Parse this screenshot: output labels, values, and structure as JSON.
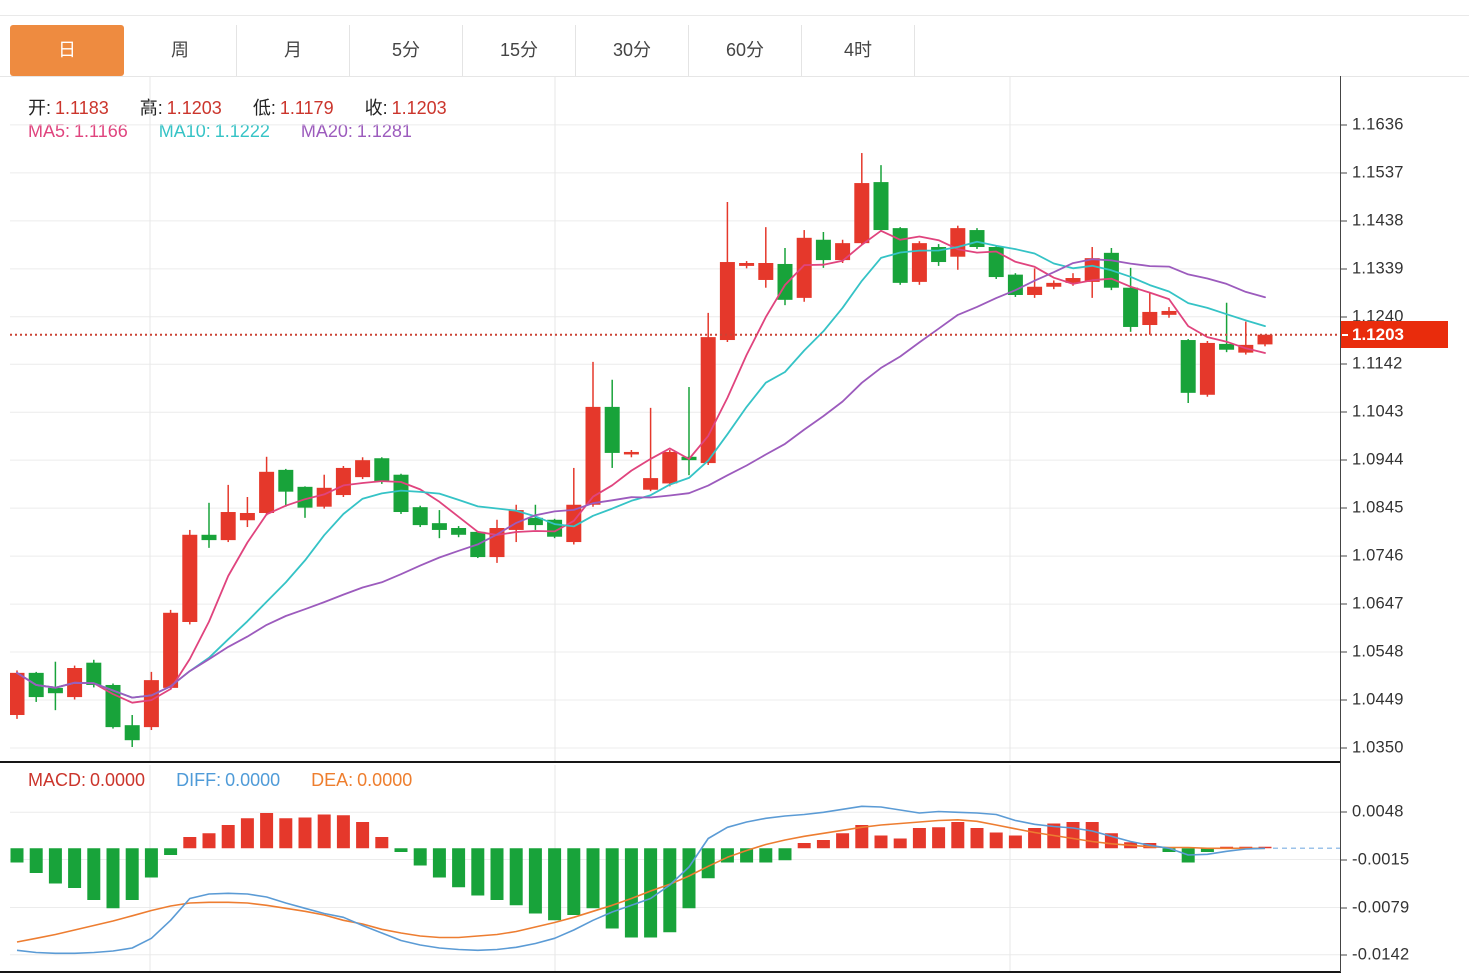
{
  "tabs": {
    "items": [
      {
        "label": "日",
        "active": true
      },
      {
        "label": "周",
        "active": false
      },
      {
        "label": "月",
        "active": false
      },
      {
        "label": "5分",
        "active": false
      },
      {
        "label": "15分",
        "active": false
      },
      {
        "label": "30分",
        "active": false
      },
      {
        "label": "60分",
        "active": false
      },
      {
        "label": "4时",
        "active": false
      }
    ]
  },
  "legend": {
    "ohlc": [
      {
        "label": "开:",
        "value": "1.1183"
      },
      {
        "label": "高:",
        "value": "1.1203"
      },
      {
        "label": "低:",
        "value": "1.1179"
      },
      {
        "label": "收:",
        "value": "1.1203"
      }
    ],
    "ma": [
      {
        "label": "MA5:",
        "value": "1.1166"
      },
      {
        "label": "MA10:",
        "value": "1.1222"
      },
      {
        "label": "MA20:",
        "value": "1.1281"
      }
    ],
    "macd": [
      {
        "label": "MACD:",
        "value": "0.0000"
      },
      {
        "label": "DIFF:",
        "value": "0.0000"
      },
      {
        "label": "DEA:",
        "value": "0.0000"
      }
    ]
  },
  "price_axis": {
    "ticks": [
      {
        "label": "1.1636",
        "price": 1.1636
      },
      {
        "label": "1.1537",
        "price": 1.1537
      },
      {
        "label": "1.1438",
        "price": 1.1438
      },
      {
        "label": "1.1339",
        "price": 1.1339
      },
      {
        "label": "1.1240",
        "price": 1.124
      },
      {
        "label": "1.1142",
        "price": 1.1142
      },
      {
        "label": "1.1043",
        "price": 1.1043
      },
      {
        "label": "1.0944",
        "price": 1.0944
      },
      {
        "label": "1.0845",
        "price": 1.0845
      },
      {
        "label": "1.0746",
        "price": 1.0746
      },
      {
        "label": "1.0647",
        "price": 1.0647
      },
      {
        "label": "1.0548",
        "price": 1.0548
      },
      {
        "label": "1.0449",
        "price": 1.0449
      },
      {
        "label": "1.0350",
        "price": 1.035
      }
    ],
    "current": {
      "label": "1.1203",
      "price": 1.1203
    }
  },
  "macd_axis": {
    "ticks": [
      {
        "label": "0.0048",
        "value": 0.0048
      },
      {
        "label": "-0.0015",
        "value": -0.0015
      },
      {
        "label": "-0.0079",
        "value": -0.0079
      },
      {
        "label": "-0.0142",
        "value": -0.0142
      }
    ]
  },
  "colors": {
    "up_candle": "#e5382b",
    "down_candle": "#18a33a",
    "ma5": "#e0447e",
    "ma10": "#35c3c6",
    "ma20": "#9c5bbd",
    "diff_line": "#5b9bd5",
    "dea_line": "#ed7d31",
    "current_price_bg": "#e92c0c",
    "current_price_line": "#cb4335",
    "active_tab": "#ee8b40",
    "grid": "#ececec"
  },
  "chart_data": {
    "type": "candlestick",
    "convention": "red = up (close>open), green = down — CN style",
    "x_axis": {
      "labels_visible": false,
      "bar_count": 66
    },
    "price_panel": {
      "ylim": [
        1.0321,
        1.1737
      ],
      "tick_values": [
        1.1636,
        1.1537,
        1.1438,
        1.1339,
        1.124,
        1.1142,
        1.1043,
        1.0944,
        1.0845,
        1.0746,
        1.0647,
        1.0548,
        1.0449,
        1.035
      ],
      "current_price": 1.1203,
      "moving_averages": [
        {
          "name": "MA5",
          "period": 5,
          "last": 1.1166
        },
        {
          "name": "MA10",
          "period": 10,
          "last": 1.1222
        },
        {
          "name": "MA20",
          "period": 20,
          "last": 1.1281
        }
      ],
      "candles_ohlc": [
        [
          1.0418,
          1.051,
          1.041,
          1.0505
        ],
        [
          1.0505,
          1.0507,
          1.0445,
          1.0455
        ],
        [
          1.0474,
          1.0528,
          1.0428,
          1.0463
        ],
        [
          1.0455,
          1.052,
          1.045,
          1.0515
        ],
        [
          1.0526,
          1.0532,
          1.0475,
          1.048
        ],
        [
          1.048,
          1.0483,
          1.039,
          1.0393
        ],
        [
          1.0397,
          1.0418,
          1.0352,
          1.0366
        ],
        [
          1.0393,
          1.0507,
          1.0387,
          1.049
        ],
        [
          1.0474,
          1.0635,
          1.047,
          1.0629
        ],
        [
          1.061,
          1.08,
          1.0605,
          1.079
        ],
        [
          1.079,
          1.0856,
          1.0763,
          1.0779
        ],
        [
          1.0779,
          1.0893,
          1.0775,
          1.0837
        ],
        [
          1.082,
          1.0868,
          1.0806,
          1.0835
        ],
        [
          1.0835,
          1.0951,
          1.083,
          1.092
        ],
        [
          1.0924,
          1.0926,
          1.0848,
          1.0879
        ],
        [
          1.0889,
          1.089,
          1.0825,
          1.0846
        ],
        [
          1.0848,
          1.0914,
          1.0844,
          1.0887
        ],
        [
          1.0872,
          1.0932,
          1.0868,
          1.0928
        ],
        [
          1.0909,
          1.095,
          1.0905,
          1.0944
        ],
        [
          1.0948,
          1.095,
          1.0895,
          1.0899
        ],
        [
          1.0914,
          1.0916,
          1.0833,
          1.0837
        ],
        [
          1.0847,
          1.085,
          1.0806,
          1.081
        ],
        [
          1.0814,
          1.0841,
          1.0783,
          1.08
        ],
        [
          1.0804,
          1.0808,
          1.0785,
          1.079
        ],
        [
          1.0796,
          1.0798,
          1.0742,
          1.0744
        ],
        [
          1.0744,
          1.0821,
          1.0732,
          1.0804
        ],
        [
          1.08,
          1.0852,
          1.0775,
          1.0841
        ],
        [
          1.0825,
          1.0852,
          1.08,
          1.081
        ],
        [
          1.0821,
          1.0823,
          1.0783,
          1.0786
        ],
        [
          1.0775,
          1.0928,
          1.077,
          1.0852
        ],
        [
          1.0852,
          1.1147,
          1.0848,
          1.1054
        ],
        [
          1.1054,
          1.111,
          1.0928,
          1.0959
        ],
        [
          1.0956,
          1.0965,
          1.095,
          1.0961
        ],
        [
          1.0883,
          1.1052,
          1.088,
          1.0907
        ],
        [
          1.0896,
          1.0965,
          1.089,
          1.0961
        ],
        [
          1.0951,
          1.1095,
          1.0913,
          1.0944
        ],
        [
          1.0938,
          1.1248,
          1.0934,
          1.1198
        ],
        [
          1.1192,
          1.1477,
          1.1188,
          1.1353
        ],
        [
          1.1345,
          1.1355,
          1.134,
          1.1351
        ],
        [
          1.1316,
          1.1425,
          1.13,
          1.1351
        ],
        [
          1.1349,
          1.1382,
          1.1264,
          1.1275
        ],
        [
          1.1279,
          1.1419,
          1.1271,
          1.1403
        ],
        [
          1.1399,
          1.1415,
          1.1341,
          1.1357
        ],
        [
          1.1357,
          1.1399,
          1.1351,
          1.1392
        ],
        [
          1.1392,
          1.1578,
          1.1388,
          1.1516
        ],
        [
          1.1518,
          1.1553,
          1.1415,
          1.1419
        ],
        [
          1.1423,
          1.1425,
          1.1306,
          1.131
        ],
        [
          1.1312,
          1.1396,
          1.1306,
          1.1392
        ],
        [
          1.1384,
          1.139,
          1.1345,
          1.1353
        ],
        [
          1.1364,
          1.1428,
          1.1337,
          1.1423
        ],
        [
          1.1419,
          1.1423,
          1.138,
          1.1384
        ],
        [
          1.1384,
          1.1388,
          1.1318,
          1.1322
        ],
        [
          1.1327,
          1.133,
          1.1281,
          1.1285
        ],
        [
          1.1285,
          1.134,
          1.1279,
          1.1302
        ],
        [
          1.1302,
          1.1315,
          1.1297,
          1.131
        ],
        [
          1.131,
          1.133,
          1.1304,
          1.132
        ],
        [
          1.1312,
          1.1384,
          1.1279,
          1.1361
        ],
        [
          1.1372,
          1.1382,
          1.1295,
          1.13
        ],
        [
          1.13,
          1.1341,
          1.1209,
          1.1219
        ],
        [
          1.1223,
          1.1289,
          1.1203,
          1.125
        ],
        [
          1.1244,
          1.126,
          1.1238,
          1.1252
        ],
        [
          1.1192,
          1.1194,
          1.1062,
          1.1083
        ],
        [
          1.1079,
          1.119,
          1.1075,
          1.1186
        ],
        [
          1.1184,
          1.1269,
          1.1167,
          1.1172
        ],
        [
          1.1166,
          1.123,
          1.1162,
          1.1182
        ],
        [
          1.1183,
          1.1203,
          1.1179,
          1.1203
        ]
      ]
    },
    "macd_panel": {
      "ylim": [
        -0.0165,
        0.0111
      ],
      "tick_values": [
        0.0048,
        -0.0015,
        -0.0079,
        -0.0142
      ],
      "legend_values": {
        "MACD": 0.0,
        "DIFF": 0.0,
        "DEA": 0.0
      },
      "hist": [
        -0.0019,
        -0.0033,
        -0.0047,
        -0.0053,
        -0.0069,
        -0.008,
        -0.0069,
        -0.0039,
        -0.0009,
        0.0015,
        0.002,
        0.0031,
        0.004,
        0.0047,
        0.004,
        0.0041,
        0.0045,
        0.0044,
        0.0035,
        0.0015,
        -0.0005,
        -0.0023,
        -0.0039,
        -0.0052,
        -0.0063,
        -0.0069,
        -0.0076,
        -0.0087,
        -0.0096,
        -0.0089,
        -0.008,
        -0.0107,
        -0.0119,
        -0.0119,
        -0.0112,
        -0.008,
        -0.004,
        -0.0019,
        -0.0019,
        -0.0019,
        -0.0016,
        0.0007,
        0.0011,
        0.002,
        0.0031,
        0.0017,
        0.0013,
        0.0027,
        0.0028,
        0.0035,
        0.0027,
        0.0021,
        0.0017,
        0.0027,
        0.0033,
        0.0035,
        0.0035,
        0.002,
        0.0008,
        0.0007,
        -0.0005,
        -0.0019,
        -0.0005,
        0.0002,
        0.0001,
        0.0
      ],
      "diff": [
        -0.0136,
        -0.0139,
        -0.014,
        -0.014,
        -0.0139,
        -0.0137,
        -0.0133,
        -0.012,
        -0.0096,
        -0.0067,
        -0.0061,
        -0.006,
        -0.0061,
        -0.0065,
        -0.0073,
        -0.008,
        -0.0087,
        -0.0092,
        -0.0103,
        -0.0113,
        -0.0123,
        -0.0129,
        -0.0133,
        -0.0135,
        -0.0136,
        -0.0135,
        -0.0132,
        -0.0127,
        -0.012,
        -0.0109,
        -0.0096,
        -0.0085,
        -0.0076,
        -0.0067,
        -0.0049,
        -0.0025,
        0.0013,
        0.0028,
        0.0035,
        0.004,
        0.0043,
        0.0045,
        0.0048,
        0.0052,
        0.0056,
        0.0055,
        0.0051,
        0.0047,
        0.0049,
        0.0048,
        0.0047,
        0.0045,
        0.0037,
        0.0032,
        0.0029,
        0.0027,
        0.0023,
        0.0016,
        0.0009,
        0.0004,
        0.0,
        -0.0009,
        -0.0008,
        -0.0004,
        -0.0001,
        0.0
      ],
      "dea": [
        -0.0125,
        -0.012,
        -0.0115,
        -0.0109,
        -0.0103,
        -0.0097,
        -0.009,
        -0.0083,
        -0.0077,
        -0.0073,
        -0.0072,
        -0.0072,
        -0.0073,
        -0.0076,
        -0.008,
        -0.0084,
        -0.0089,
        -0.0096,
        -0.0101,
        -0.0108,
        -0.0113,
        -0.0117,
        -0.0119,
        -0.0119,
        -0.0117,
        -0.0115,
        -0.0111,
        -0.0105,
        -0.0099,
        -0.0092,
        -0.0084,
        -0.0076,
        -0.0067,
        -0.0057,
        -0.0048,
        -0.0037,
        -0.0024,
        -0.0012,
        -0.0003,
        0.0005,
        0.0011,
        0.0016,
        0.002,
        0.0024,
        0.0028,
        0.0031,
        0.0033,
        0.0035,
        0.0037,
        0.0038,
        0.0036,
        0.0031,
        0.0026,
        0.0021,
        0.0017,
        0.0013,
        0.0009,
        0.0006,
        0.0004,
        0.0002,
        0.0001,
        0.0001,
        0.0,
        0.0,
        0.0,
        0.0
      ]
    }
  }
}
